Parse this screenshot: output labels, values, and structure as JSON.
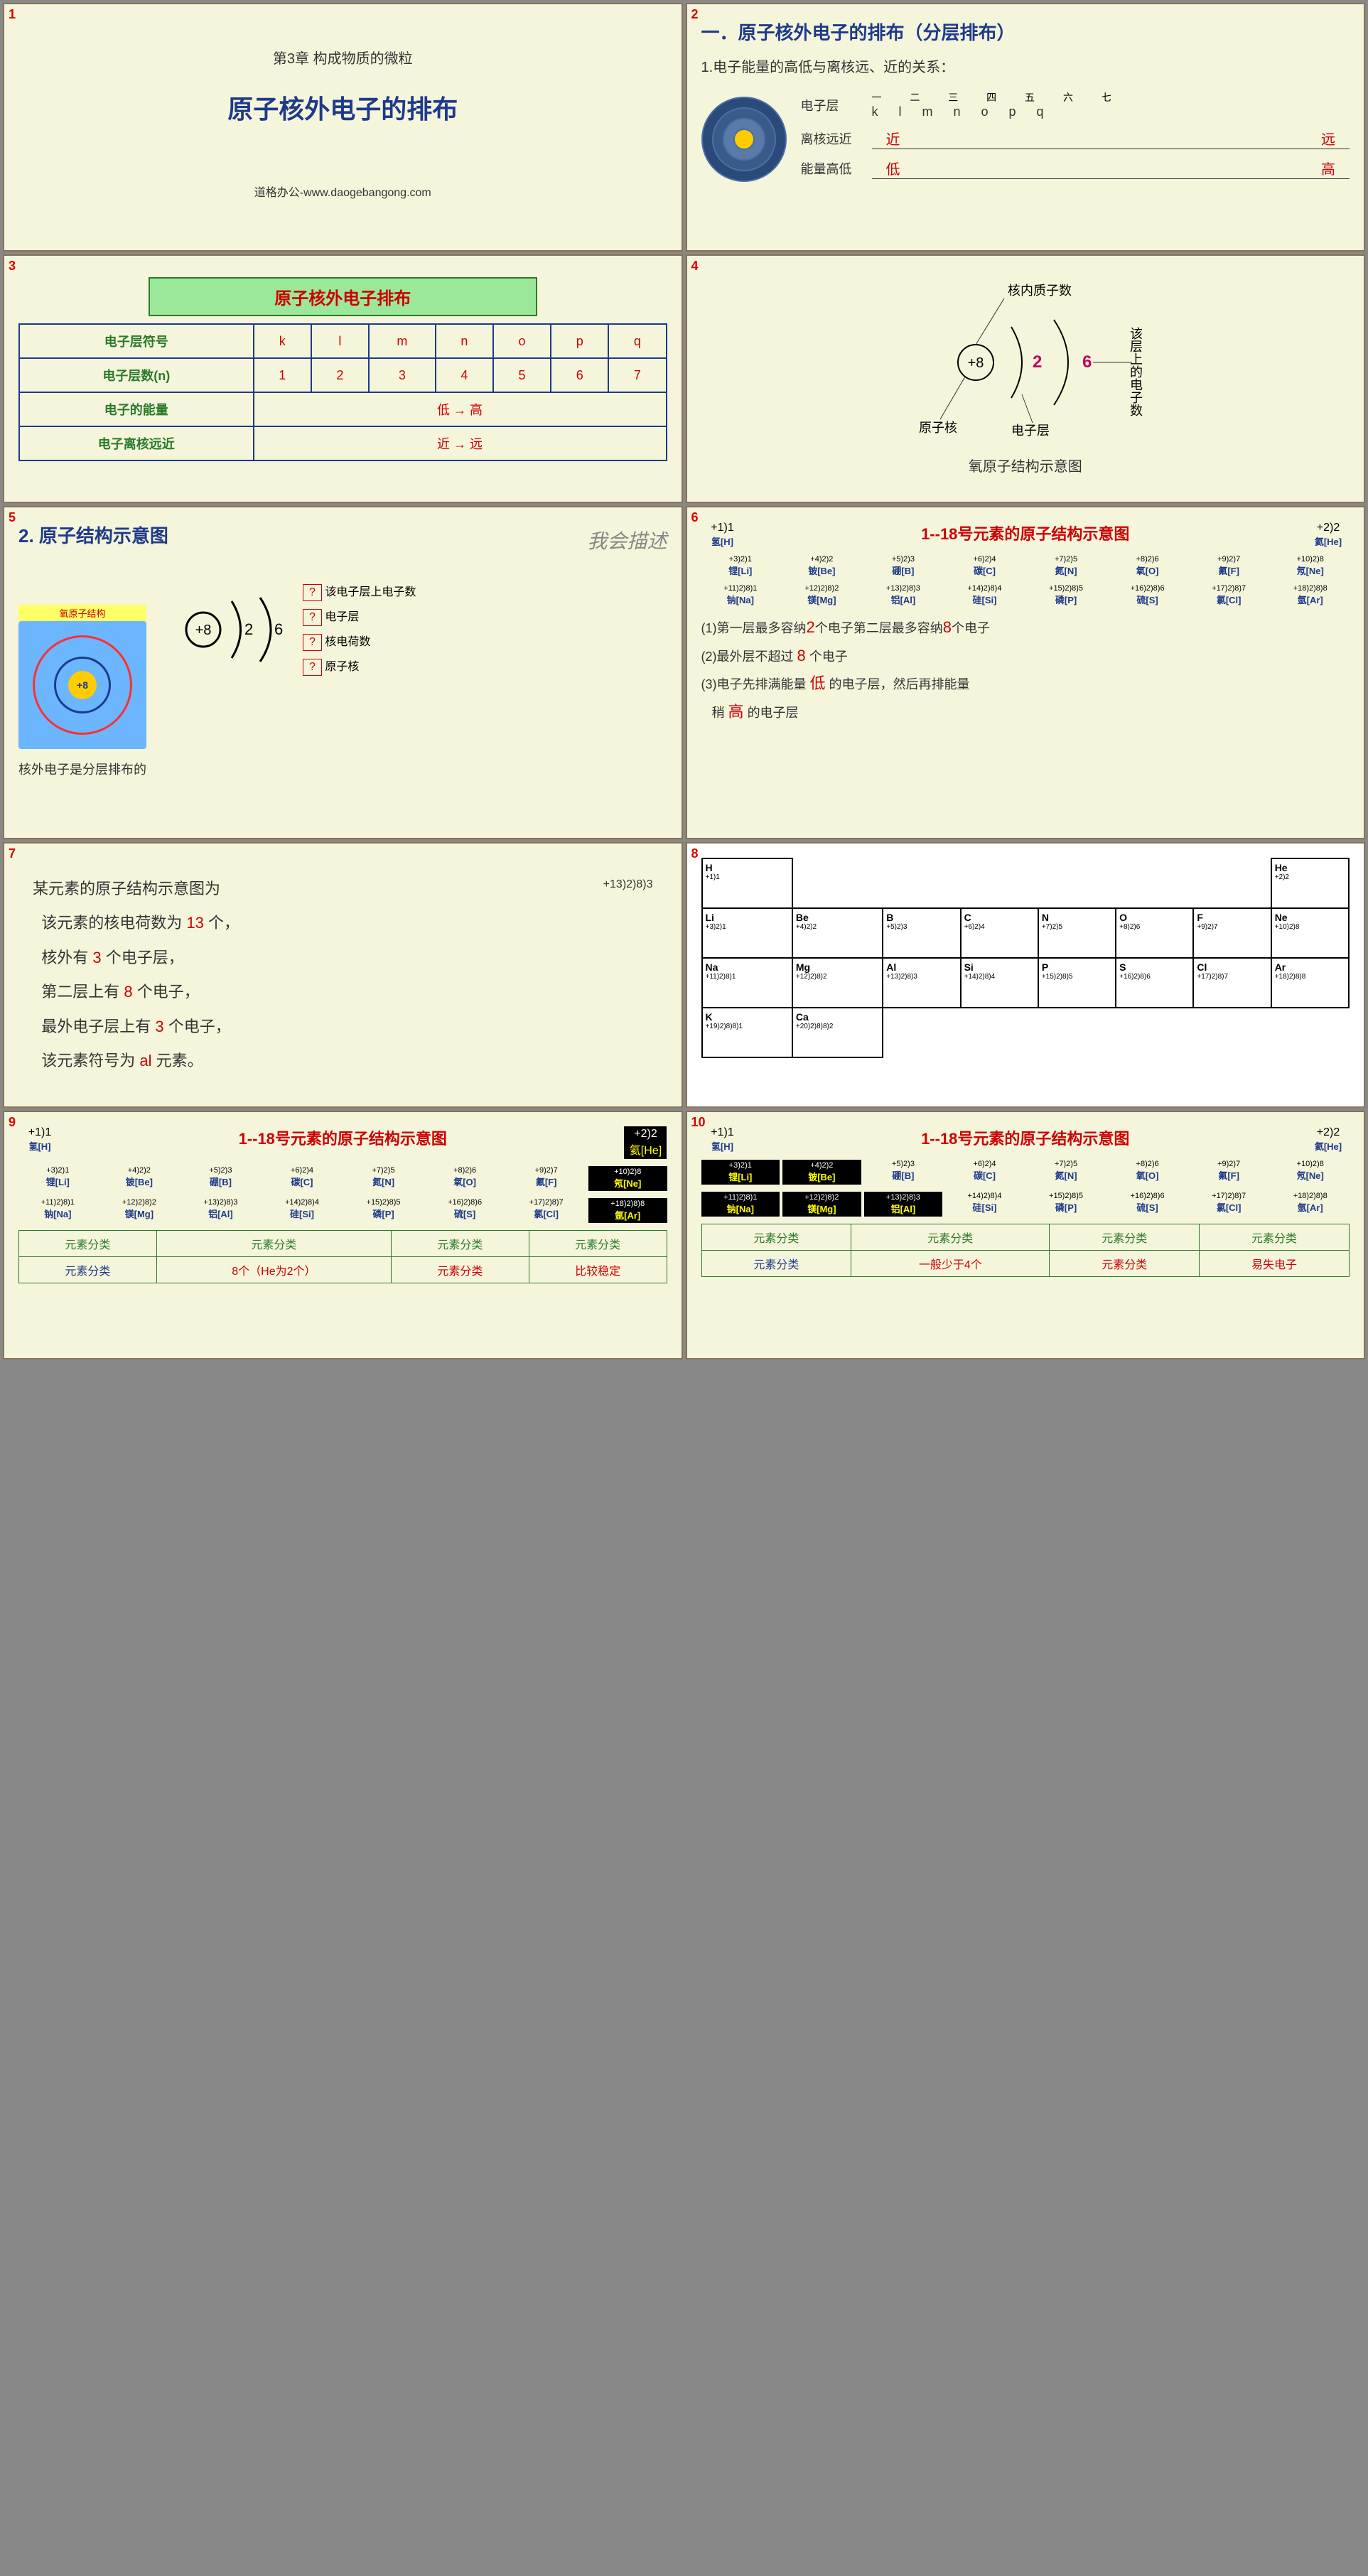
{
  "slides": {
    "s1": {
      "num": "1",
      "chapter": "第3章 构成物质的微粒",
      "title": "原子核外电子的排布",
      "footer": "道格办公-www.daogebangong.com"
    },
    "s2": {
      "num": "2",
      "title": "一．原子核外电子的排布（分层排布）",
      "subtitle": "1.电子能量的高低与离核远、近的关系：",
      "rows": [
        {
          "label": "电子层",
          "top": "一 二 三 四 五 六 七",
          "vals": "k  l  m  n  o  p  q"
        },
        {
          "label": "离核远近",
          "left": "近",
          "right": "远"
        },
        {
          "label": "能量高低",
          "left": "低",
          "right": "高"
        }
      ],
      "shell_colors": [
        "#2a4a7a",
        "#3a5a8a",
        "#5a7aaa",
        "#ffcc00"
      ]
    },
    "s3": {
      "num": "3",
      "box_title": "原子核外电子排布",
      "table": {
        "r1_label": "电子层符号",
        "r1_vals": [
          "k",
          "l",
          "m",
          "n",
          "o",
          "p",
          "q"
        ],
        "r2_label": "电子层数(n)",
        "r2_vals": [
          "1",
          "2",
          "3",
          "4",
          "5",
          "6",
          "7"
        ],
        "r3_label": "电子的能量",
        "r3_val": "低 → 高",
        "r4_label": "电子离核远近",
        "r4_val": "近 → 远"
      }
    },
    "s4": {
      "num": "4",
      "labels": {
        "proton": "核内质子数",
        "nucleus": "原子核",
        "shell": "电子层",
        "electrons": "该层上的电子数"
      },
      "values": {
        "center": "+8",
        "l1": "2",
        "l2": "6"
      },
      "caption": "氧原子结构示意图",
      "colors": {
        "center_text": "#000",
        "val1": "#c00060",
        "val2": "#c00060"
      }
    },
    "s5": {
      "num": "5",
      "title": "2. 原子结构示意图",
      "cursive": "我会描述",
      "box_label": "氧原子结构",
      "center": "+8",
      "arcs": [
        "2",
        "6"
      ],
      "bottom_text": "核外电子是分层排布的",
      "q_labels": [
        "该电子层上电子数",
        "电子层",
        "核电荷数",
        "原子核"
      ],
      "colors": {
        "bg": "#6bb6ff",
        "ring1": "#ff3030",
        "ring2": "#1e3a8a",
        "core": "#ffcc00",
        "dots": "#ff0000"
      }
    },
    "s6": {
      "num": "6",
      "title": "1--18号元素的原子结构示意图",
      "elements_r1": [
        {
          "sym": "氢[H]",
          "cfg": "+1)1"
        },
        {
          "sym": "氦[He]",
          "cfg": "+2)2"
        }
      ],
      "elements_r2": [
        {
          "sym": "锂[Li]",
          "cfg": "+3)2)1"
        },
        {
          "sym": "铍[Be]",
          "cfg": "+4)2)2"
        },
        {
          "sym": "硼[B]",
          "cfg": "+5)2)3"
        },
        {
          "sym": "碳[C]",
          "cfg": "+6)2)4"
        },
        {
          "sym": "氮[N]",
          "cfg": "+7)2)5"
        },
        {
          "sym": "氧[O]",
          "cfg": "+8)2)6"
        },
        {
          "sym": "氟[F]",
          "cfg": "+9)2)7"
        },
        {
          "sym": "氖[Ne]",
          "cfg": "+10)2)8"
        }
      ],
      "elements_r3": [
        {
          "sym": "钠[Na]",
          "cfg": "+11)2)8)1"
        },
        {
          "sym": "镁[Mg]",
          "cfg": "+12)2)8)2"
        },
        {
          "sym": "铝[Al]",
          "cfg": "+13)2)8)3"
        },
        {
          "sym": "硅[Si]",
          "cfg": "+14)2)8)4"
        },
        {
          "sym": "磷[P]",
          "cfg": "+15)2)8)5"
        },
        {
          "sym": "硫[S]",
          "cfg": "+16)2)8)6"
        },
        {
          "sym": "氯[Cl]",
          "cfg": "+17)2)8)7"
        },
        {
          "sym": "氩[Ar]",
          "cfg": "+18)2)8)8"
        }
      ],
      "rules": {
        "r1a": "(1)第一层最多容纳",
        "r1b": "2",
        "r1c": "个电子第二层最多容纳",
        "r1d": "8",
        "r1e": "个电子",
        "r2a": "(2)最外层不超过",
        "r2b": "8",
        "r2c": "个电子",
        "r3a": "(3)电子先排满能量",
        "r3b": "低",
        "r3c": "的电子层，然后再排能量",
        "r3d": "稍",
        "r3e": "高",
        "r3f": "的电子层"
      }
    },
    "s7": {
      "num": "7",
      "lines": {
        "l1": "某元素的原子结构示意图为",
        "l2a": "该元素的核电荷数为",
        "l2b": "13",
        "l2c": "个，",
        "l3a": "核外有",
        "l3b": "3",
        "l3c": "个电子层，",
        "l4a": "第二层上有",
        "l4b": "8",
        "l4c": "个电子，",
        "l5a": "最外电子层上有",
        "l5b": "3",
        "l5c": "个电子，",
        "l6a": "该元素符号为",
        "l6b": "al",
        "l6c": "元素。"
      },
      "diagram": "+13)2)8)3"
    },
    "s8": {
      "num": "8",
      "pt": [
        [
          {
            "s": "H",
            "c": "+1)1"
          },
          null,
          null,
          null,
          null,
          null,
          null,
          {
            "s": "He",
            "c": "+2)2"
          }
        ],
        [
          {
            "s": "Li",
            "c": "+3)2)1"
          },
          {
            "s": "Be",
            "c": "+4)2)2"
          },
          {
            "s": "B",
            "c": "+5)2)3"
          },
          {
            "s": "C",
            "c": "+6)2)4"
          },
          {
            "s": "N",
            "c": "+7)2)5"
          },
          {
            "s": "O",
            "c": "+8)2)6"
          },
          {
            "s": "F",
            "c": "+9)2)7"
          },
          {
            "s": "Ne",
            "c": "+10)2)8"
          }
        ],
        [
          {
            "s": "Na",
            "c": "+11)2)8)1"
          },
          {
            "s": "Mg",
            "c": "+12)2)8)2"
          },
          {
            "s": "Al",
            "c": "+13)2)8)3"
          },
          {
            "s": "Si",
            "c": "+14)2)8)4"
          },
          {
            "s": "P",
            "c": "+15)2)8)5"
          },
          {
            "s": "S",
            "c": "+16)2)8)6"
          },
          {
            "s": "Cl",
            "c": "+17)2)8)7"
          },
          {
            "s": "Ar",
            "c": "+18)2)8)8"
          }
        ],
        [
          {
            "s": "K",
            "c": "+19)2)8)8)1"
          },
          {
            "s": "Ca",
            "c": "+20)2)8)8)2"
          },
          null,
          null,
          null,
          null,
          null,
          null
        ]
      ]
    },
    "s9": {
      "num": "9",
      "title": "1--18号元素的原子结构示意图",
      "highlighted": [
        "氦[He]",
        "氖[Ne]",
        "氩[Ar]"
      ],
      "bottom": {
        "hdr": "元素分类",
        "cells": [
          "元素分类",
          "元素分类",
          "8个（He为2个）",
          "元素分类",
          "比较稳定"
        ]
      }
    },
    "s10": {
      "num": "10",
      "title": "1--18号元素的原子结构示意图",
      "highlighted": [
        "锂[Li]",
        "铍[Be]",
        "钠[Na]",
        "镁[Mg]",
        "铝[Al]"
      ],
      "bottom": {
        "hdr": "元素分类",
        "cells": [
          "元素分类",
          "元素分类",
          "一般少于4个",
          "元素分类",
          "易失电子"
        ]
      }
    }
  }
}
